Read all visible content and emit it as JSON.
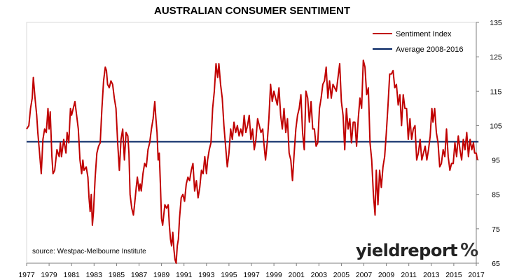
{
  "chart_data": {
    "type": "line",
    "title": "AUSTRALIAN CONSUMER SENTIMENT",
    "source": "source: Westpac-Melbourne Institute",
    "brand": "yieldreport",
    "brand_symbol": "%",
    "xlim": [
      1977,
      2017
    ],
    "ylim": [
      65,
      135
    ],
    "x_ticks": [
      "1977",
      "1979",
      "1981",
      "1983",
      "1985",
      "1987",
      "1989",
      "1991",
      "1993",
      "1995",
      "1997",
      "1999",
      "2001",
      "2003",
      "2005",
      "2007",
      "2009",
      "2011",
      "2013",
      "2015",
      "2017"
    ],
    "y_ticks": [
      "65",
      "75",
      "85",
      "95",
      "105",
      "115",
      "125",
      "135"
    ],
    "y_axis_side": "right",
    "grid": false,
    "legend_position": "top-right",
    "colors": {
      "sentiment": "#c00000",
      "average": "#002060"
    },
    "series": [
      {
        "name": "Sentiment Index",
        "type": "line",
        "points": [
          [
            1977.0,
            104
          ],
          [
            1977.2,
            105
          ],
          [
            1977.35,
            110
          ],
          [
            1977.5,
            113
          ],
          [
            1977.6,
            119
          ],
          [
            1977.75,
            113
          ],
          [
            1977.9,
            108
          ],
          [
            1978.0,
            103
          ],
          [
            1978.15,
            97
          ],
          [
            1978.3,
            91
          ],
          [
            1978.45,
            101
          ],
          [
            1978.6,
            104
          ],
          [
            1978.75,
            103
          ],
          [
            1978.9,
            110
          ],
          [
            1979.0,
            104
          ],
          [
            1979.1,
            109
          ],
          [
            1979.25,
            96
          ],
          [
            1979.35,
            91
          ],
          [
            1979.5,
            92
          ],
          [
            1979.7,
            98
          ],
          [
            1979.9,
            96
          ],
          [
            1980.0,
            100
          ],
          [
            1980.1,
            96
          ],
          [
            1980.3,
            101
          ],
          [
            1980.5,
            97
          ],
          [
            1980.6,
            103
          ],
          [
            1980.75,
            100
          ],
          [
            1980.9,
            110
          ],
          [
            1981.0,
            108
          ],
          [
            1981.15,
            110
          ],
          [
            1981.3,
            112
          ],
          [
            1981.45,
            108
          ],
          [
            1981.6,
            104
          ],
          [
            1981.75,
            95
          ],
          [
            1981.9,
            91
          ],
          [
            1982.0,
            95
          ],
          [
            1982.1,
            92
          ],
          [
            1982.3,
            93
          ],
          [
            1982.45,
            90
          ],
          [
            1982.55,
            84
          ],
          [
            1982.65,
            80
          ],
          [
            1982.75,
            85
          ],
          [
            1982.85,
            76
          ],
          [
            1982.95,
            80
          ],
          [
            1983.1,
            90
          ],
          [
            1983.25,
            97
          ],
          [
            1983.4,
            99
          ],
          [
            1983.55,
            100
          ],
          [
            1983.7,
            110
          ],
          [
            1983.85,
            118
          ],
          [
            1984.0,
            122
          ],
          [
            1984.1,
            121
          ],
          [
            1984.2,
            117
          ],
          [
            1984.35,
            116
          ],
          [
            1984.5,
            118
          ],
          [
            1984.65,
            117
          ],
          [
            1984.8,
            113
          ],
          [
            1984.95,
            110
          ],
          [
            1985.1,
            100
          ],
          [
            1985.25,
            92
          ],
          [
            1985.4,
            101
          ],
          [
            1985.55,
            104
          ],
          [
            1985.7,
            95
          ],
          [
            1985.85,
            103
          ],
          [
            1986.0,
            102
          ],
          [
            1986.1,
            97
          ],
          [
            1986.2,
            85
          ],
          [
            1986.35,
            81
          ],
          [
            1986.5,
            79
          ],
          [
            1986.6,
            82
          ],
          [
            1986.75,
            87
          ],
          [
            1986.85,
            90
          ],
          [
            1987.0,
            86
          ],
          [
            1987.1,
            88
          ],
          [
            1987.2,
            86
          ],
          [
            1987.35,
            91
          ],
          [
            1987.5,
            94
          ],
          [
            1987.65,
            93
          ],
          [
            1987.8,
            98
          ],
          [
            1987.95,
            100
          ],
          [
            1988.1,
            104
          ],
          [
            1988.25,
            107
          ],
          [
            1988.4,
            112
          ],
          [
            1988.5,
            107
          ],
          [
            1988.6,
            103
          ],
          [
            1988.7,
            95
          ],
          [
            1988.8,
            97
          ],
          [
            1988.9,
            88
          ],
          [
            1989.0,
            78
          ],
          [
            1989.1,
            76
          ],
          [
            1989.2,
            79
          ],
          [
            1989.3,
            82
          ],
          [
            1989.45,
            81
          ],
          [
            1989.6,
            82
          ],
          [
            1989.7,
            76
          ],
          [
            1989.8,
            72
          ],
          [
            1989.9,
            70
          ],
          [
            1990.0,
            74
          ],
          [
            1990.1,
            69
          ],
          [
            1990.2,
            66
          ],
          [
            1990.3,
            65
          ],
          [
            1990.4,
            70
          ],
          [
            1990.5,
            72
          ],
          [
            1990.6,
            78
          ],
          [
            1990.75,
            84
          ],
          [
            1990.9,
            85
          ],
          [
            1991.05,
            83
          ],
          [
            1991.2,
            88
          ],
          [
            1991.35,
            90
          ],
          [
            1991.5,
            89
          ],
          [
            1991.65,
            92
          ],
          [
            1991.8,
            94
          ],
          [
            1991.95,
            86
          ],
          [
            1992.1,
            89
          ],
          [
            1992.25,
            84
          ],
          [
            1992.4,
            87
          ],
          [
            1992.55,
            92
          ],
          [
            1992.7,
            91
          ],
          [
            1992.85,
            96
          ],
          [
            1993.0,
            91
          ],
          [
            1993.1,
            95
          ],
          [
            1993.25,
            98
          ],
          [
            1993.4,
            100
          ],
          [
            1993.55,
            110
          ],
          [
            1993.7,
            115
          ],
          [
            1993.85,
            123
          ],
          [
            1994.0,
            119
          ],
          [
            1994.1,
            123
          ],
          [
            1994.25,
            117
          ],
          [
            1994.4,
            113
          ],
          [
            1994.55,
            105
          ],
          [
            1994.7,
            99
          ],
          [
            1994.85,
            93
          ],
          [
            1995.0,
            97
          ],
          [
            1995.15,
            104
          ],
          [
            1995.3,
            101
          ],
          [
            1995.45,
            106
          ],
          [
            1995.6,
            103
          ],
          [
            1995.75,
            105
          ],
          [
            1995.9,
            102
          ],
          [
            1996.05,
            104
          ],
          [
            1996.2,
            102
          ],
          [
            1996.35,
            108
          ],
          [
            1996.5,
            103
          ],
          [
            1996.65,
            105
          ],
          [
            1996.8,
            108
          ],
          [
            1996.95,
            101
          ],
          [
            1997.1,
            104
          ],
          [
            1997.25,
            98
          ],
          [
            1997.4,
            101
          ],
          [
            1997.55,
            107
          ],
          [
            1997.7,
            105
          ],
          [
            1997.85,
            103
          ],
          [
            1998.0,
            104
          ],
          [
            1998.1,
            100
          ],
          [
            1998.25,
            95
          ],
          [
            1998.4,
            100
          ],
          [
            1998.55,
            107
          ],
          [
            1998.7,
            117
          ],
          [
            1998.85,
            112
          ],
          [
            1999.0,
            115
          ],
          [
            1999.15,
            113
          ],
          [
            1999.3,
            111
          ],
          [
            1999.45,
            116
          ],
          [
            1999.6,
            108
          ],
          [
            1999.75,
            104
          ],
          [
            1999.9,
            110
          ],
          [
            2000.05,
            103
          ],
          [
            2000.2,
            107
          ],
          [
            2000.35,
            97
          ],
          [
            2000.5,
            95
          ],
          [
            2000.65,
            89
          ],
          [
            2000.8,
            97
          ],
          [
            2000.95,
            104
          ],
          [
            2001.1,
            108
          ],
          [
            2001.25,
            110
          ],
          [
            2001.4,
            114
          ],
          [
            2001.55,
            103
          ],
          [
            2001.7,
            98
          ],
          [
            2001.85,
            115
          ],
          [
            2002.0,
            113
          ],
          [
            2002.15,
            106
          ],
          [
            2002.3,
            112
          ],
          [
            2002.45,
            104
          ],
          [
            2002.6,
            104
          ],
          [
            2002.75,
            99
          ],
          [
            2002.9,
            100
          ],
          [
            2003.05,
            110
          ],
          [
            2003.2,
            113
          ],
          [
            2003.35,
            117
          ],
          [
            2003.5,
            118
          ],
          [
            2003.65,
            122
          ],
          [
            2003.8,
            113
          ],
          [
            2003.95,
            118
          ],
          [
            2004.1,
            113
          ],
          [
            2004.25,
            117
          ],
          [
            2004.4,
            116
          ],
          [
            2004.55,
            115
          ],
          [
            2004.7,
            119
          ],
          [
            2004.85,
            123
          ],
          [
            2005.0,
            112
          ],
          [
            2005.15,
            108
          ],
          [
            2005.3,
            98
          ],
          [
            2005.45,
            110
          ],
          [
            2005.6,
            104
          ],
          [
            2005.75,
            107
          ],
          [
            2005.9,
            100
          ],
          [
            2006.05,
            106
          ],
          [
            2006.2,
            106
          ],
          [
            2006.35,
            99
          ],
          [
            2006.5,
            107
          ],
          [
            2006.65,
            113
          ],
          [
            2006.8,
            110
          ],
          [
            2006.95,
            124
          ],
          [
            2007.1,
            122
          ],
          [
            2007.25,
            114
          ],
          [
            2007.4,
            116
          ],
          [
            2007.55,
            100
          ],
          [
            2007.7,
            95
          ],
          [
            2007.85,
            85
          ],
          [
            2008.0,
            79
          ],
          [
            2008.1,
            92
          ],
          [
            2008.25,
            82
          ],
          [
            2008.4,
            92
          ],
          [
            2008.55,
            87
          ],
          [
            2008.7,
            93
          ],
          [
            2008.85,
            96
          ],
          [
            2009.0,
            103
          ],
          [
            2009.15,
            111
          ],
          [
            2009.3,
            120
          ],
          [
            2009.45,
            120
          ],
          [
            2009.6,
            121
          ],
          [
            2009.75,
            116
          ],
          [
            2009.9,
            117
          ],
          [
            2010.05,
            111
          ],
          [
            2010.2,
            114
          ],
          [
            2010.35,
            105
          ],
          [
            2010.5,
            114
          ],
          [
            2010.65,
            110
          ],
          [
            2010.8,
            110
          ],
          [
            2010.95,
            101
          ],
          [
            2011.1,
            107
          ],
          [
            2011.25,
            101
          ],
          [
            2011.4,
            104
          ],
          [
            2011.55,
            105
          ],
          [
            2011.7,
            95
          ],
          [
            2011.85,
            97
          ],
          [
            2012.0,
            101
          ],
          [
            2012.15,
            95
          ],
          [
            2012.3,
            97
          ],
          [
            2012.45,
            99
          ],
          [
            2012.6,
            95
          ],
          [
            2012.75,
            98
          ],
          [
            2012.9,
            102
          ],
          [
            2013.05,
            110
          ],
          [
            2013.15,
            106
          ],
          [
            2013.3,
            110
          ],
          [
            2013.45,
            103
          ],
          [
            2013.6,
            100
          ],
          [
            2013.75,
            93
          ],
          [
            2013.9,
            94
          ],
          [
            2014.05,
            98
          ],
          [
            2014.2,
            96
          ],
          [
            2014.35,
            104
          ],
          [
            2014.5,
            96
          ],
          [
            2014.65,
            92
          ],
          [
            2014.8,
            94
          ],
          [
            2014.95,
            94
          ],
          [
            2015.1,
            100
          ],
          [
            2015.25,
            96
          ],
          [
            2015.4,
            102
          ],
          [
            2015.55,
            98
          ],
          [
            2015.7,
            95
          ],
          [
            2015.85,
            101
          ],
          [
            2016.0,
            98
          ],
          [
            2016.15,
            103
          ],
          [
            2016.3,
            96
          ],
          [
            2016.45,
            101
          ],
          [
            2016.6,
            98
          ],
          [
            2016.75,
            100
          ],
          [
            2016.85,
            97
          ],
          [
            2017.0,
            97
          ],
          [
            2017.1,
            95
          ]
        ]
      },
      {
        "name": "Average 2008-2016",
        "type": "line",
        "points": [
          [
            1977,
            100.3
          ],
          [
            2017.2,
            100.3
          ]
        ]
      }
    ]
  }
}
